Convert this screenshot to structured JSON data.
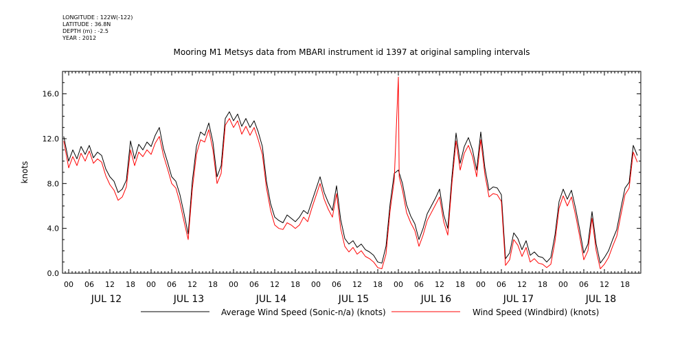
{
  "metadata": {
    "longitude": "LONGITUDE : 122W(-122)",
    "latitude": "LATITUDE : 36.8N",
    "depth": "DEPTH (m) : -2.5",
    "year": "YEAR : 2012"
  },
  "chart_data": {
    "type": "line",
    "title": "Mooring M1 Metsys data from MBARI instrument id 1397 at original sampling intervals",
    "ylabel": "knots",
    "xlabel": "",
    "ylim": [
      0,
      18
    ],
    "xlim": [
      -0.06,
      6.9
    ],
    "yticks": [
      0.0,
      4.0,
      8.0,
      12.0,
      16.0
    ],
    "ytick_labels": [
      "0.0",
      "4.0",
      "8.0",
      "12.0",
      "16.0"
    ],
    "hour_labels": [
      "00",
      "06",
      "12",
      "18"
    ],
    "days": [
      "JUL 12",
      "JUL 13",
      "JUL 14",
      "JUL 15",
      "JUL 16",
      "JUL 17",
      "JUL 18"
    ],
    "grid": false,
    "legend_position": "bottom",
    "series": [
      {
        "name": "Average Wind Speed (Sonic-n/a) (knots)",
        "color": "#000000",
        "points": [
          [
            -0.06,
            12.2
          ],
          [
            0.0,
            10.0
          ],
          [
            0.05,
            11.0
          ],
          [
            0.1,
            10.2
          ],
          [
            0.15,
            11.3
          ],
          [
            0.2,
            10.6
          ],
          [
            0.25,
            11.4
          ],
          [
            0.3,
            10.3
          ],
          [
            0.35,
            10.8
          ],
          [
            0.4,
            10.5
          ],
          [
            0.45,
            9.3
          ],
          [
            0.5,
            8.6
          ],
          [
            0.55,
            8.2
          ],
          [
            0.6,
            7.2
          ],
          [
            0.65,
            7.5
          ],
          [
            0.7,
            8.3
          ],
          [
            0.75,
            11.8
          ],
          [
            0.8,
            10.2
          ],
          [
            0.85,
            11.5
          ],
          [
            0.9,
            11.0
          ],
          [
            0.95,
            11.7
          ],
          [
            1.0,
            11.3
          ],
          [
            1.05,
            12.3
          ],
          [
            1.1,
            13.0
          ],
          [
            1.15,
            11.1
          ],
          [
            1.2,
            9.9
          ],
          [
            1.25,
            8.6
          ],
          [
            1.3,
            8.2
          ],
          [
            1.35,
            7.0
          ],
          [
            1.4,
            5.3
          ],
          [
            1.45,
            3.5
          ],
          [
            1.5,
            8.2
          ],
          [
            1.55,
            11.3
          ],
          [
            1.6,
            12.6
          ],
          [
            1.65,
            12.3
          ],
          [
            1.7,
            13.4
          ],
          [
            1.75,
            11.7
          ],
          [
            1.8,
            8.6
          ],
          [
            1.85,
            9.6
          ],
          [
            1.9,
            13.8
          ],
          [
            1.95,
            14.4
          ],
          [
            2.0,
            13.6
          ],
          [
            2.05,
            14.2
          ],
          [
            2.1,
            13.1
          ],
          [
            2.15,
            13.8
          ],
          [
            2.2,
            13.0
          ],
          [
            2.25,
            13.6
          ],
          [
            2.3,
            12.6
          ],
          [
            2.35,
            11.3
          ],
          [
            2.4,
            8.2
          ],
          [
            2.45,
            6.2
          ],
          [
            2.5,
            5.0
          ],
          [
            2.55,
            4.7
          ],
          [
            2.6,
            4.5
          ],
          [
            2.65,
            5.2
          ],
          [
            2.7,
            4.9
          ],
          [
            2.75,
            4.6
          ],
          [
            2.8,
            5.0
          ],
          [
            2.85,
            5.6
          ],
          [
            2.9,
            5.3
          ],
          [
            2.95,
            6.4
          ],
          [
            3.0,
            7.5
          ],
          [
            3.05,
            8.6
          ],
          [
            3.1,
            7.2
          ],
          [
            3.15,
            6.3
          ],
          [
            3.2,
            5.6
          ],
          [
            3.25,
            7.8
          ],
          [
            3.3,
            4.8
          ],
          [
            3.35,
            3.1
          ],
          [
            3.4,
            2.6
          ],
          [
            3.45,
            2.9
          ],
          [
            3.5,
            2.3
          ],
          [
            3.55,
            2.6
          ],
          [
            3.6,
            2.1
          ],
          [
            3.65,
            1.9
          ],
          [
            3.7,
            1.6
          ],
          [
            3.75,
            1.0
          ],
          [
            3.8,
            0.9
          ],
          [
            3.85,
            2.4
          ],
          [
            3.9,
            6.2
          ],
          [
            3.95,
            8.9
          ],
          [
            4.0,
            9.2
          ],
          [
            4.05,
            8.0
          ],
          [
            4.1,
            6.1
          ],
          [
            4.15,
            5.1
          ],
          [
            4.2,
            4.4
          ],
          [
            4.25,
            3.0
          ],
          [
            4.3,
            4.0
          ],
          [
            4.35,
            5.3
          ],
          [
            4.4,
            6.0
          ],
          [
            4.45,
            6.7
          ],
          [
            4.5,
            7.5
          ],
          [
            4.55,
            5.2
          ],
          [
            4.6,
            4.0
          ],
          [
            4.65,
            8.6
          ],
          [
            4.7,
            12.5
          ],
          [
            4.75,
            9.8
          ],
          [
            4.8,
            11.3
          ],
          [
            4.85,
            12.1
          ],
          [
            4.9,
            11.0
          ],
          [
            4.95,
            9.2
          ],
          [
            5.0,
            12.6
          ],
          [
            5.05,
            9.4
          ],
          [
            5.1,
            7.4
          ],
          [
            5.15,
            7.7
          ],
          [
            5.2,
            7.6
          ],
          [
            5.25,
            7.0
          ],
          [
            5.3,
            1.3
          ],
          [
            5.35,
            1.8
          ],
          [
            5.4,
            3.6
          ],
          [
            5.45,
            3.1
          ],
          [
            5.5,
            2.1
          ],
          [
            5.55,
            2.9
          ],
          [
            5.6,
            1.6
          ],
          [
            5.65,
            1.9
          ],
          [
            5.7,
            1.5
          ],
          [
            5.75,
            1.4
          ],
          [
            5.8,
            1.0
          ],
          [
            5.85,
            1.4
          ],
          [
            5.9,
            3.4
          ],
          [
            5.95,
            6.4
          ],
          [
            6.0,
            7.5
          ],
          [
            6.05,
            6.6
          ],
          [
            6.1,
            7.4
          ],
          [
            6.15,
            5.8
          ],
          [
            6.2,
            3.9
          ],
          [
            6.25,
            1.8
          ],
          [
            6.3,
            2.6
          ],
          [
            6.35,
            5.5
          ],
          [
            6.4,
            2.6
          ],
          [
            6.45,
            0.9
          ],
          [
            6.5,
            1.4
          ],
          [
            6.55,
            2.0
          ],
          [
            6.6,
            3.0
          ],
          [
            6.65,
            3.9
          ],
          [
            6.7,
            5.8
          ],
          [
            6.75,
            7.6
          ],
          [
            6.8,
            8.1
          ],
          [
            6.85,
            11.4
          ],
          [
            6.9,
            10.5
          ]
        ]
      },
      {
        "name": "Wind Speed (Windbird) (knots)",
        "color": "#ff0000",
        "points": [
          [
            -0.06,
            11.8
          ],
          [
            0.0,
            9.4
          ],
          [
            0.05,
            10.4
          ],
          [
            0.1,
            9.6
          ],
          [
            0.15,
            10.7
          ],
          [
            0.2,
            10.0
          ],
          [
            0.25,
            10.9
          ],
          [
            0.3,
            9.8
          ],
          [
            0.35,
            10.2
          ],
          [
            0.4,
            9.9
          ],
          [
            0.45,
            8.7
          ],
          [
            0.5,
            7.9
          ],
          [
            0.55,
            7.4
          ],
          [
            0.6,
            6.5
          ],
          [
            0.65,
            6.8
          ],
          [
            0.7,
            7.7
          ],
          [
            0.75,
            11.0
          ],
          [
            0.8,
            9.6
          ],
          [
            0.85,
            10.8
          ],
          [
            0.9,
            10.4
          ],
          [
            0.95,
            11.0
          ],
          [
            1.0,
            10.6
          ],
          [
            1.05,
            11.6
          ],
          [
            1.1,
            12.2
          ],
          [
            1.15,
            10.5
          ],
          [
            1.2,
            9.3
          ],
          [
            1.25,
            8.0
          ],
          [
            1.3,
            7.6
          ],
          [
            1.35,
            6.3
          ],
          [
            1.4,
            4.6
          ],
          [
            1.45,
            3.0
          ],
          [
            1.5,
            7.5
          ],
          [
            1.55,
            10.6
          ],
          [
            1.6,
            11.9
          ],
          [
            1.65,
            11.7
          ],
          [
            1.7,
            12.8
          ],
          [
            1.75,
            11.0
          ],
          [
            1.8,
            8.0
          ],
          [
            1.85,
            8.9
          ],
          [
            1.9,
            13.2
          ],
          [
            1.95,
            13.8
          ],
          [
            2.0,
            13.0
          ],
          [
            2.05,
            13.6
          ],
          [
            2.1,
            12.4
          ],
          [
            2.15,
            13.1
          ],
          [
            2.2,
            12.3
          ],
          [
            2.25,
            13.0
          ],
          [
            2.3,
            11.9
          ],
          [
            2.35,
            10.6
          ],
          [
            2.4,
            7.6
          ],
          [
            2.45,
            5.6
          ],
          [
            2.5,
            4.3
          ],
          [
            2.55,
            4.0
          ],
          [
            2.6,
            3.9
          ],
          [
            2.65,
            4.5
          ],
          [
            2.7,
            4.3
          ],
          [
            2.75,
            4.0
          ],
          [
            2.8,
            4.3
          ],
          [
            2.85,
            5.0
          ],
          [
            2.9,
            4.6
          ],
          [
            2.95,
            5.8
          ],
          [
            3.0,
            6.9
          ],
          [
            3.05,
            8.0
          ],
          [
            3.1,
            6.6
          ],
          [
            3.15,
            5.7
          ],
          [
            3.2,
            5.0
          ],
          [
            3.25,
            7.1
          ],
          [
            3.3,
            4.0
          ],
          [
            3.35,
            2.4
          ],
          [
            3.4,
            1.9
          ],
          [
            3.45,
            2.3
          ],
          [
            3.5,
            1.7
          ],
          [
            3.55,
            2.0
          ],
          [
            3.6,
            1.5
          ],
          [
            3.65,
            1.3
          ],
          [
            3.7,
            1.0
          ],
          [
            3.75,
            0.5
          ],
          [
            3.8,
            0.4
          ],
          [
            3.85,
            1.7
          ],
          [
            3.9,
            5.6
          ],
          [
            3.95,
            8.3
          ],
          [
            4.0,
            17.5
          ],
          [
            4.01,
            8.6
          ],
          [
            4.05,
            7.4
          ],
          [
            4.1,
            5.4
          ],
          [
            4.15,
            4.5
          ],
          [
            4.2,
            3.8
          ],
          [
            4.25,
            2.4
          ],
          [
            4.3,
            3.4
          ],
          [
            4.35,
            4.7
          ],
          [
            4.4,
            5.4
          ],
          [
            4.45,
            6.1
          ],
          [
            4.5,
            6.8
          ],
          [
            4.55,
            4.6
          ],
          [
            4.6,
            3.4
          ],
          [
            4.65,
            8.0
          ],
          [
            4.7,
            11.8
          ],
          [
            4.75,
            9.2
          ],
          [
            4.8,
            10.7
          ],
          [
            4.85,
            11.4
          ],
          [
            4.9,
            10.4
          ],
          [
            4.95,
            8.6
          ],
          [
            5.0,
            11.9
          ],
          [
            5.05,
            8.8
          ],
          [
            5.1,
            6.8
          ],
          [
            5.15,
            7.1
          ],
          [
            5.2,
            7.0
          ],
          [
            5.25,
            6.4
          ],
          [
            5.3,
            0.7
          ],
          [
            5.35,
            1.2
          ],
          [
            5.4,
            3.0
          ],
          [
            5.45,
            2.5
          ],
          [
            5.5,
            1.5
          ],
          [
            5.55,
            2.3
          ],
          [
            5.6,
            1.0
          ],
          [
            5.65,
            1.3
          ],
          [
            5.7,
            0.9
          ],
          [
            5.75,
            0.8
          ],
          [
            5.8,
            0.5
          ],
          [
            5.85,
            0.8
          ],
          [
            5.9,
            2.8
          ],
          [
            5.95,
            5.8
          ],
          [
            6.0,
            6.9
          ],
          [
            6.05,
            6.0
          ],
          [
            6.1,
            6.8
          ],
          [
            6.15,
            5.2
          ],
          [
            6.2,
            3.3
          ],
          [
            6.25,
            1.2
          ],
          [
            6.3,
            2.0
          ],
          [
            6.35,
            4.9
          ],
          [
            6.4,
            2.0
          ],
          [
            6.45,
            0.4
          ],
          [
            6.5,
            0.8
          ],
          [
            6.55,
            1.4
          ],
          [
            6.6,
            2.4
          ],
          [
            6.65,
            3.3
          ],
          [
            6.7,
            5.2
          ],
          [
            6.75,
            7.0
          ],
          [
            6.8,
            7.6
          ],
          [
            6.85,
            10.8
          ],
          [
            6.9,
            9.9
          ]
        ]
      }
    ]
  }
}
